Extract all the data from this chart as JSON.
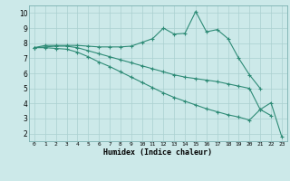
{
  "x": [
    0,
    1,
    2,
    3,
    4,
    5,
    6,
    7,
    8,
    9,
    10,
    11,
    12,
    13,
    14,
    15,
    16,
    17,
    18,
    19,
    20,
    21,
    22,
    23
  ],
  "line1": [
    7.7,
    7.85,
    7.85,
    7.85,
    7.85,
    7.8,
    7.75,
    7.75,
    7.75,
    7.8,
    8.05,
    8.3,
    9.0,
    8.6,
    8.65,
    10.1,
    8.75,
    8.9,
    8.3,
    7.0,
    5.9,
    5.0,
    null,
    null
  ],
  "line2": [
    7.7,
    7.75,
    7.8,
    7.8,
    7.7,
    7.5,
    7.3,
    7.1,
    6.9,
    6.7,
    6.5,
    6.3,
    6.1,
    5.9,
    5.75,
    5.65,
    5.55,
    5.45,
    5.3,
    5.15,
    5.0,
    3.6,
    3.2,
    null
  ],
  "line3": [
    7.7,
    7.7,
    7.65,
    7.6,
    7.4,
    7.1,
    6.75,
    6.45,
    6.1,
    5.75,
    5.4,
    5.05,
    4.7,
    4.4,
    4.15,
    3.9,
    3.65,
    3.45,
    3.25,
    3.1,
    2.9,
    3.6,
    4.05,
    1.8
  ],
  "color": "#2e8b76",
  "bg_color": "#cce9e9",
  "grid_color": "#aad0d0",
  "xlabel": "Humidex (Indice chaleur)",
  "ylim": [
    1.5,
    10.5
  ],
  "xlim": [
    -0.5,
    23.5
  ],
  "yticks": [
    2,
    3,
    4,
    5,
    6,
    7,
    8,
    9,
    10
  ],
  "xticks": [
    0,
    1,
    2,
    3,
    4,
    5,
    6,
    7,
    8,
    9,
    10,
    11,
    12,
    13,
    14,
    15,
    16,
    17,
    18,
    19,
    20,
    21,
    22,
    23
  ]
}
